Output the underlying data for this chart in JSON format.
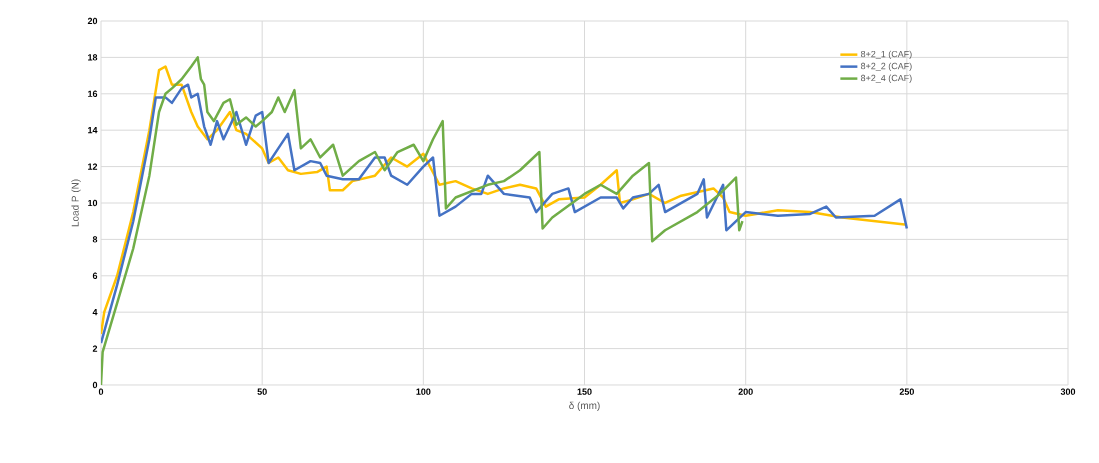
{
  "chart_data": {
    "type": "line",
    "xlabel": "δ (mm)",
    "ylabel": "Load P (N)",
    "xlim": [
      0,
      300
    ],
    "xticks": [
      0,
      50,
      100,
      150,
      200,
      250,
      300
    ],
    "ylim": [
      0,
      20
    ],
    "yticks": [
      0,
      2,
      4,
      6,
      8,
      10,
      12,
      14,
      16,
      18,
      20
    ],
    "grid": true,
    "legend": "top right",
    "marker": "none",
    "line_style": "solid",
    "series": [
      {
        "name": "8+2_1 (CAF)",
        "color": "#ffc000",
        "x": [
          0,
          1,
          5,
          10,
          15,
          18,
          20,
          22,
          25,
          28,
          30,
          33,
          36,
          40,
          42,
          45,
          50,
          52,
          55,
          58,
          62,
          67,
          70,
          71,
          75,
          78,
          85,
          90,
          95,
          100,
          105,
          110,
          115,
          120,
          125,
          130,
          135,
          138,
          142,
          150,
          155,
          160,
          161,
          165,
          170,
          175,
          180,
          190,
          193,
          195,
          200,
          210,
          220,
          230,
          240,
          250
        ],
        "values": [
          2.8,
          4,
          6,
          9.5,
          14,
          17.3,
          17.5,
          16.5,
          16.5,
          15,
          14.2,
          13.5,
          14,
          15,
          14,
          13.8,
          13,
          12.2,
          12.5,
          11.8,
          11.6,
          11.7,
          12,
          10.7,
          10.7,
          11.2,
          11.5,
          12.5,
          12,
          12.7,
          11,
          11.2,
          10.8,
          10.5,
          10.8,
          11,
          10.8,
          9.8,
          10.2,
          10.3,
          11,
          11.8,
          10,
          10.2,
          10.5,
          10,
          10.4,
          10.8,
          10.3,
          9.5,
          9.3,
          9.6,
          9.5,
          9.2,
          9,
          8.8
        ]
      },
      {
        "name": "8+2_2 (CAF)",
        "color": "#4472c4",
        "x": [
          0,
          5,
          10,
          15,
          17,
          20,
          22,
          25,
          27,
          28,
          30,
          32,
          34,
          36,
          38,
          42,
          45,
          48,
          50,
          52,
          55,
          58,
          60,
          65,
          68,
          70,
          75,
          80,
          85,
          88,
          90,
          95,
          100,
          103,
          105,
          110,
          115,
          118,
          120,
          125,
          133,
          135,
          140,
          145,
          147,
          155,
          160,
          162,
          165,
          170,
          173,
          175,
          180,
          185,
          187,
          188,
          193,
          194,
          200,
          210,
          220,
          225,
          228,
          240,
          248,
          250
        ],
        "values": [
          2.3,
          5.5,
          9,
          13.5,
          15.8,
          15.8,
          15.5,
          16.3,
          16.5,
          15.8,
          16,
          14.2,
          13.2,
          14.5,
          13.5,
          15,
          13.2,
          14.8,
          15,
          12.2,
          13,
          13.8,
          11.8,
          12.3,
          12.2,
          11.5,
          11.3,
          11.3,
          12.5,
          12.5,
          11.5,
          11,
          12,
          12.5,
          9.3,
          9.8,
          10.5,
          10.5,
          11.5,
          10.5,
          10.3,
          9.5,
          10.5,
          10.8,
          9.5,
          10.3,
          10.3,
          9.7,
          10.3,
          10.5,
          11,
          9.5,
          10,
          10.5,
          11.3,
          9.2,
          11,
          8.5,
          9.5,
          9.3,
          9.4,
          9.8,
          9.2,
          9.3,
          10.2,
          8.6
        ]
      },
      {
        "name": "8+2_4 (CAF)",
        "color": "#70ad47",
        "x": [
          0,
          0.5,
          5,
          10,
          15,
          18,
          20,
          22,
          25,
          28,
          30,
          31,
          32,
          33,
          35,
          38,
          40,
          42,
          45,
          48,
          50,
          53,
          55,
          57,
          60,
          62,
          65,
          68,
          72,
          75,
          80,
          85,
          88,
          92,
          97,
          100,
          103,
          106,
          107,
          110,
          120,
          125,
          130,
          136,
          137,
          140,
          150,
          155,
          160,
          165,
          170,
          171,
          175,
          185,
          192,
          197,
          198,
          199
        ],
        "values": [
          0,
          1.8,
          4.5,
          7.5,
          11.5,
          15,
          16,
          16.3,
          16.8,
          17.5,
          18,
          16.8,
          16.5,
          15,
          14.5,
          15.5,
          15.7,
          14.3,
          14.7,
          14.2,
          14.5,
          15,
          15.8,
          15,
          16.2,
          13,
          13.5,
          12.5,
          13.2,
          11.5,
          12.3,
          12.8,
          11.8,
          12.8,
          13.2,
          12.3,
          13.5,
          14.5,
          9.7,
          10.3,
          11,
          11.2,
          11.8,
          12.8,
          8.6,
          9.2,
          10.5,
          11,
          10.5,
          11.5,
          12.2,
          7.9,
          8.5,
          9.5,
          10.5,
          11.4,
          8.5,
          9
        ]
      }
    ]
  }
}
